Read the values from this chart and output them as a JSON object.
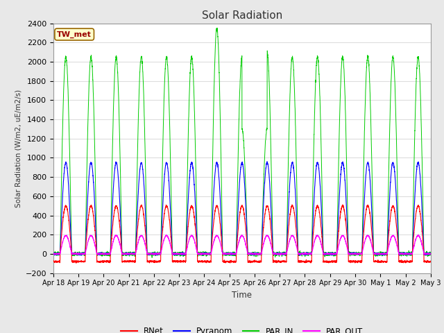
{
  "title": "Solar Radiation",
  "ylabel": "Solar Radiation (W/m2, uE/m2/s)",
  "xlabel": "Time",
  "ylim": [
    -200,
    2400
  ],
  "station_label": "TW_met",
  "legend_entries": [
    "RNet",
    "Pyranom",
    "PAR_IN",
    "PAR_OUT"
  ],
  "legend_colors": [
    "#ff0000",
    "#0000ff",
    "#00cc00",
    "#ff00ff"
  ],
  "fig_bg": "#e8e8e8",
  "plot_bg": "#ffffff",
  "grid_color": "#dddddd",
  "tick_labels": [
    "Apr 18",
    "Apr 19",
    "Apr 20",
    "Apr 21",
    "Apr 22",
    "Apr 23",
    "Apr 24",
    "Apr 25",
    "Apr 26",
    "Apr 27",
    "Apr 28",
    "Apr 29",
    "Apr 30",
    "May 1",
    "May 2",
    "May 3"
  ],
  "rnet_peak": 500,
  "pyranom_peak": 950,
  "par_in_peak": 2050,
  "par_out_peak": 190,
  "par_in_spike": 2350,
  "spike_day": 6.5,
  "rnet_night": -80
}
